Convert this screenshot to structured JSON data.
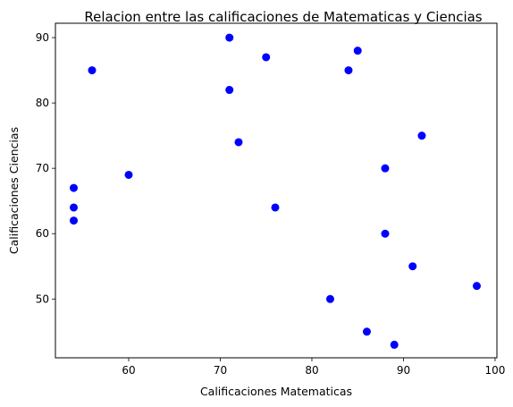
{
  "chart_data": {
    "type": "scatter",
    "title": "Relacion entre las calificaciones de Matematicas y Ciencias",
    "xlabel": "Calificaciones Matematicas",
    "ylabel": "Calificaciones Ciencias",
    "xlim": [
      52.0,
      100.2
    ],
    "ylim": [
      41.0,
      92.2
    ],
    "xticks": [
      60,
      70,
      80,
      90,
      100
    ],
    "yticks": [
      50,
      60,
      70,
      80,
      90
    ],
    "grid": false,
    "marker_color": "#0000ff",
    "points": [
      {
        "x": 71,
        "y": 90
      },
      {
        "x": 75,
        "y": 87
      },
      {
        "x": 85,
        "y": 88
      },
      {
        "x": 56,
        "y": 85
      },
      {
        "x": 84,
        "y": 85
      },
      {
        "x": 71,
        "y": 82
      },
      {
        "x": 92,
        "y": 75
      },
      {
        "x": 72,
        "y": 74
      },
      {
        "x": 88,
        "y": 70
      },
      {
        "x": 60,
        "y": 69
      },
      {
        "x": 54,
        "y": 67
      },
      {
        "x": 54,
        "y": 64
      },
      {
        "x": 76,
        "y": 64
      },
      {
        "x": 54,
        "y": 62
      },
      {
        "x": 88,
        "y": 60
      },
      {
        "x": 91,
        "y": 55
      },
      {
        "x": 98,
        "y": 52
      },
      {
        "x": 82,
        "y": 50
      },
      {
        "x": 86,
        "y": 45
      },
      {
        "x": 89,
        "y": 43
      }
    ]
  }
}
